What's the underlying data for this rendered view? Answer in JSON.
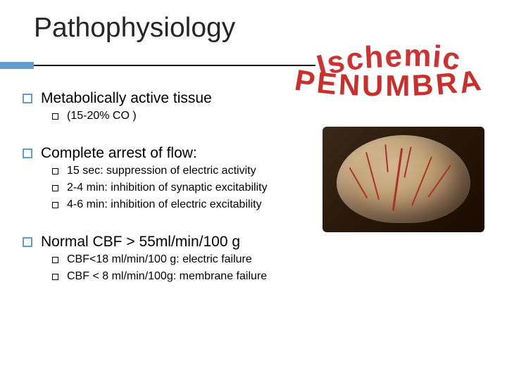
{
  "title": "Pathophysiology",
  "wordart": {
    "line1": "Ischemic",
    "line2": "PENUMBRA",
    "color": "#cc3333",
    "stroke": "#802020"
  },
  "sections": [
    {
      "heading": "Metabolically active tissue",
      "items": [
        "(15-20% CO )"
      ]
    },
    {
      "heading": "Complete arrest of flow:",
      "items": [
        "15 sec: suppression of electric activity",
        "2-4 min: inhibition of synaptic excitability",
        "4-6 min: inhibition of electric excitability"
      ]
    },
    {
      "heading": "Normal CBF > 55ml/min/100 g",
      "items": [
        "CBF<18 ml/min/100 g: electric failure",
        "CBF < 8 ml/min/100g: membrane failure"
      ]
    }
  ],
  "colors": {
    "accent": "#629dd1",
    "text": "#000000",
    "title": "#262626"
  }
}
